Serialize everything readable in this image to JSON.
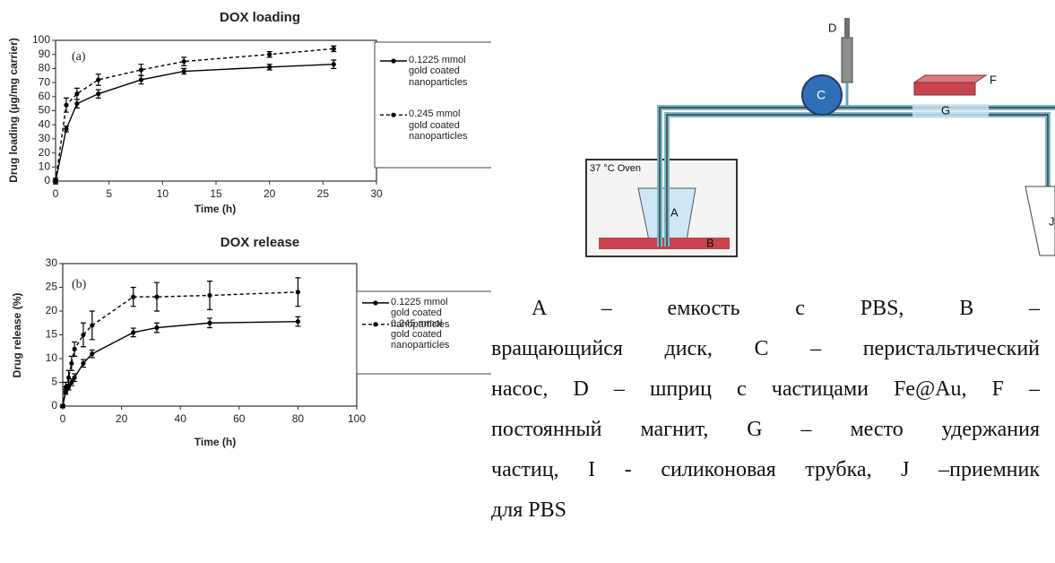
{
  "chart_data": [
    {
      "type": "line",
      "title": "DOX loading",
      "x_label": "Time (h)",
      "y_label": "Drug loading (µg/mg carrier)",
      "annotation": "(a)",
      "x": [
        0,
        1,
        2,
        4,
        8,
        12,
        20,
        26
      ],
      "series": [
        {
          "name": "0.1225 mmol gold coated nanoparticles",
          "color": "#000000",
          "dash": false,
          "values": [
            0,
            37,
            55,
            62,
            72,
            78,
            81,
            83
          ],
          "errors": [
            1,
            2,
            3,
            3,
            3,
            2,
            2,
            3
          ]
        },
        {
          "name": "0.245 mmol gold coated nanoparticles",
          "color": "#000000",
          "dash": true,
          "values": [
            0,
            54,
            62,
            72,
            79,
            85,
            90,
            94
          ],
          "errors": [
            2,
            5,
            4,
            4,
            4,
            3,
            2,
            2
          ]
        }
      ],
      "xlim": [
        0,
        30
      ],
      "xticks": [
        0,
        5,
        10,
        15,
        20,
        25,
        30
      ],
      "ylim": [
        0,
        100
      ],
      "yticks": [
        0,
        10,
        20,
        30,
        40,
        50,
        60,
        70,
        80,
        90,
        100
      ],
      "grid": false,
      "legend": "right"
    },
    {
      "type": "line",
      "title": "DOX release",
      "x_label": "Time (h)",
      "y_label": "Drug release (%)",
      "annotation": "(b)",
      "x": [
        0,
        1,
        2,
        3,
        4,
        7,
        10,
        24,
        32,
        50,
        80
      ],
      "series": [
        {
          "name": "0.1225 mmol gold coated nanoparticles",
          "color": "#000000",
          "dash": false,
          "values": [
            0,
            3,
            4,
            5,
            6,
            9,
            11,
            15.5,
            16.5,
            17.5,
            17.8
          ],
          "errors": [
            0.3,
            0.5,
            0.6,
            0.7,
            0.8,
            0.8,
            0.8,
            0.9,
            1,
            1,
            1
          ]
        },
        {
          "name": "0.245 mmol gold coated nanoparticles",
          "color": "#000000",
          "dash": true,
          "values": [
            0,
            4,
            6,
            9,
            12,
            15,
            17,
            23,
            23,
            23.3,
            24
          ],
          "errors": [
            0.3,
            1,
            1.5,
            1.5,
            1.5,
            2.5,
            3,
            2,
            3,
            3,
            3
          ]
        }
      ],
      "xlim": [
        0,
        100
      ],
      "xticks": [
        0,
        20,
        40,
        60,
        80,
        100
      ],
      "ylim": [
        0,
        30
      ],
      "yticks": [
        0,
        5,
        10,
        15,
        20,
        25,
        30
      ],
      "grid": false,
      "legend": "right"
    }
  ],
  "diagram": {
    "labels": {
      "oven": "37 °C Oven",
      "a": "A",
      "b": "B",
      "c": "C",
      "d": "D",
      "f": "F",
      "g": "G",
      "j": "J"
    }
  },
  "caption": {
    "lines": [
      "A – емкость с PBS, B –",
      "вращающийся диск, C – перистальтический",
      "насос, D – шприц с частицами Fe@Au, F –",
      "постоянный магнит, G – место удержания",
      "частиц, I - силиконовая трубка, J –приемник",
      "для PBS"
    ]
  }
}
